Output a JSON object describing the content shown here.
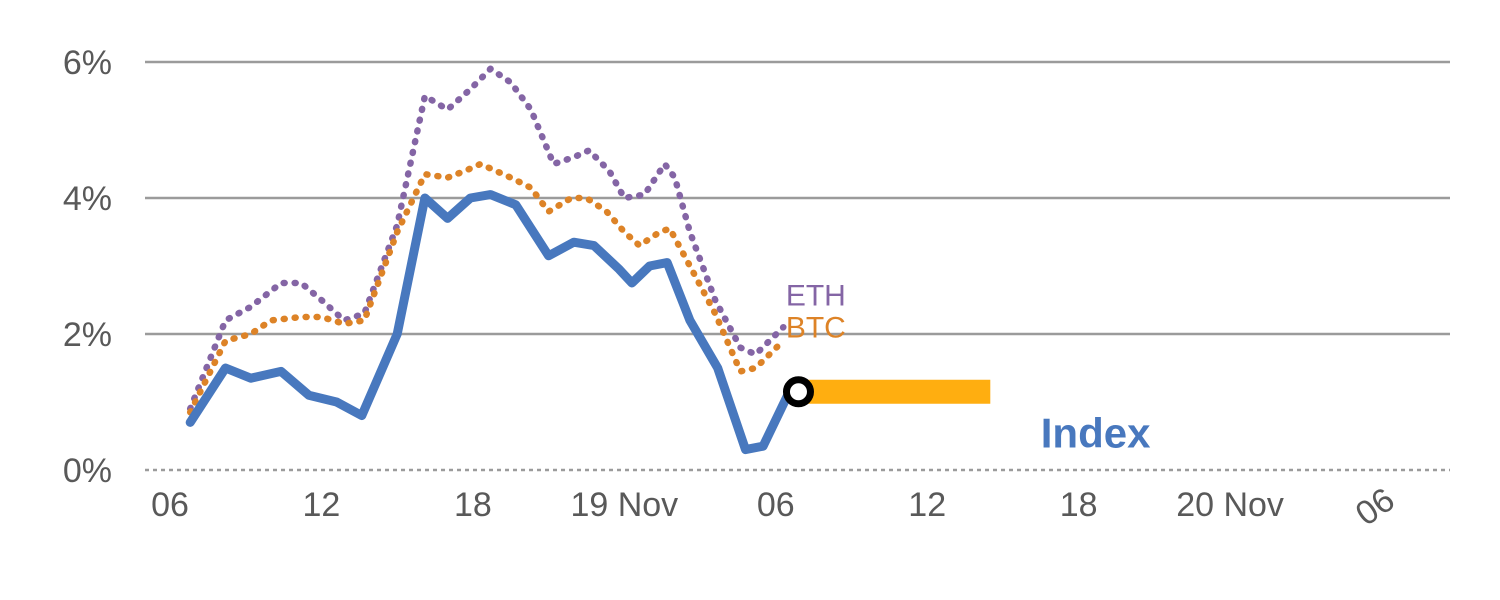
{
  "chart_data": {
    "type": "line",
    "title": "",
    "xlabel": "",
    "ylabel": "",
    "x_unit": "hours_from_first_tick",
    "xlim": [
      -1,
      51.5
    ],
    "ylim": [
      0,
      6.4
    ],
    "grid": "horizontal",
    "legend_position": "inline-labels",
    "y_ticks": [
      {
        "value": 0,
        "label": "0%",
        "dashed": true
      },
      {
        "value": 2,
        "label": "2%",
        "dashed": false
      },
      {
        "value": 4,
        "label": "4%",
        "dashed": false
      },
      {
        "value": 6,
        "label": "6%",
        "dashed": false
      }
    ],
    "x_ticks": [
      {
        "pos": 0,
        "label": "06",
        "rotate": false
      },
      {
        "pos": 6,
        "label": "12",
        "rotate": false
      },
      {
        "pos": 12,
        "label": "18",
        "rotate": false
      },
      {
        "pos": 18,
        "label": "19 Nov",
        "rotate": false
      },
      {
        "pos": 24,
        "label": "06",
        "rotate": false
      },
      {
        "pos": 30,
        "label": "12",
        "rotate": false
      },
      {
        "pos": 36,
        "label": "18",
        "rotate": false
      },
      {
        "pos": 42,
        "label": "20 Nov",
        "rotate": false
      },
      {
        "pos": 48,
        "label": "06",
        "rotate": true
      }
    ],
    "series": [
      {
        "name": "ETH",
        "color": "#8465A5",
        "style": "dotted",
        "label": "ETH",
        "label_pos": [
          24.4,
          2.42
        ],
        "points": [
          [
            0.8,
            0.9
          ],
          [
            2.2,
            2.2
          ],
          [
            3.2,
            2.4
          ],
          [
            4.4,
            2.75
          ],
          [
            5.2,
            2.75
          ],
          [
            6.0,
            2.5
          ],
          [
            6.9,
            2.2
          ],
          [
            7.7,
            2.3
          ],
          [
            9.0,
            3.6
          ],
          [
            10.1,
            5.5
          ],
          [
            11.0,
            5.3
          ],
          [
            11.9,
            5.6
          ],
          [
            12.7,
            5.9
          ],
          [
            13.5,
            5.7
          ],
          [
            14.3,
            5.3
          ],
          [
            15.2,
            4.5
          ],
          [
            16.0,
            4.6
          ],
          [
            16.6,
            4.7
          ],
          [
            17.4,
            4.4
          ],
          [
            18.0,
            4.0
          ],
          [
            18.8,
            4.05
          ],
          [
            19.6,
            4.5
          ],
          [
            20.0,
            4.3
          ],
          [
            20.6,
            3.5
          ],
          [
            21.6,
            2.5
          ],
          [
            22.6,
            1.8
          ],
          [
            23.2,
            1.7
          ],
          [
            24.3,
            2.1
          ]
        ]
      },
      {
        "name": "BTC",
        "color": "#DD8327",
        "style": "dotted",
        "label": "BTC",
        "label_pos": [
          24.4,
          1.95
        ],
        "points": [
          [
            0.8,
            0.85
          ],
          [
            2.2,
            1.9
          ],
          [
            3.2,
            2.0
          ],
          [
            4.0,
            2.2
          ],
          [
            5.2,
            2.25
          ],
          [
            6.0,
            2.25
          ],
          [
            6.9,
            2.15
          ],
          [
            7.7,
            2.2
          ],
          [
            9.0,
            3.5
          ],
          [
            10.1,
            4.35
          ],
          [
            11.0,
            4.3
          ],
          [
            11.7,
            4.4
          ],
          [
            12.3,
            4.5
          ],
          [
            13.5,
            4.3
          ],
          [
            14.3,
            4.15
          ],
          [
            15.0,
            3.8
          ],
          [
            15.9,
            4.0
          ],
          [
            16.5,
            4.0
          ],
          [
            17.3,
            3.8
          ],
          [
            18.0,
            3.5
          ],
          [
            18.6,
            3.3
          ],
          [
            19.4,
            3.5
          ],
          [
            19.8,
            3.55
          ],
          [
            20.6,
            3.0
          ],
          [
            21.6,
            2.3
          ],
          [
            22.6,
            1.45
          ],
          [
            23.2,
            1.5
          ],
          [
            24.3,
            1.9
          ]
        ]
      },
      {
        "name": "Index",
        "color": "#4878BE",
        "style": "solid",
        "label": "Index",
        "label_pos": [
          34.5,
          0.33
        ],
        "points": [
          [
            0.8,
            0.7
          ],
          [
            2.2,
            1.5
          ],
          [
            3.2,
            1.35
          ],
          [
            4.4,
            1.45
          ],
          [
            5.5,
            1.1
          ],
          [
            6.6,
            1.0
          ],
          [
            7.6,
            0.8
          ],
          [
            9.0,
            2.0
          ],
          [
            10.1,
            4.0
          ],
          [
            11.0,
            3.7
          ],
          [
            11.9,
            4.0
          ],
          [
            12.7,
            4.05
          ],
          [
            13.7,
            3.9
          ],
          [
            15.0,
            3.15
          ],
          [
            16.0,
            3.35
          ],
          [
            16.8,
            3.3
          ],
          [
            17.8,
            2.95
          ],
          [
            18.3,
            2.75
          ],
          [
            19.0,
            3.0
          ],
          [
            19.7,
            3.05
          ],
          [
            20.6,
            2.2
          ],
          [
            21.7,
            1.5
          ],
          [
            22.8,
            0.3
          ],
          [
            23.5,
            0.35
          ],
          [
            24.6,
            1.2
          ],
          [
            24.9,
            1.2
          ]
        ]
      }
    ],
    "highlight_bar": {
      "name": "index-projection-bar",
      "color": "#FFAE10",
      "from_x": 24.9,
      "to_x": 32.5,
      "value": 1.15
    },
    "marker": {
      "name": "current-point-marker",
      "x": 24.9,
      "value": 1.15,
      "ring_color": "#000000",
      "fill_color": "#ffffff"
    },
    "colors": {
      "grid": "#9B9B9B",
      "axis_text": "#595959",
      "background": "#ffffff"
    }
  }
}
